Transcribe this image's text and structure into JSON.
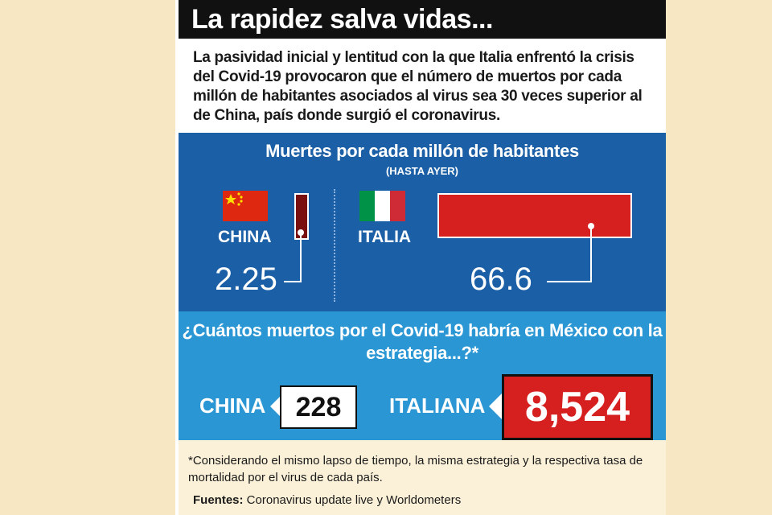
{
  "header": {
    "title": "La rapidez salva vidas..."
  },
  "intro": "La pasividad inicial y lentitud con la que Italia enfrentó la crisis del Covid-19 provocaron que el número de muertos por cada millón de habitantes asociados al virus sea 30 veces superior al de China, país donde surgió el coronavirus.",
  "colors": {
    "title_bg": "#111111",
    "panel_top": "#1b5fa6",
    "panel_bottom": "#2a96d4",
    "china_bar": "#7a0f0f",
    "italy_bar": "#d61f1f",
    "highlight": "#d61f1f"
  },
  "chart_data": {
    "type": "bar",
    "title": "Muertes por cada millón de habitantes",
    "subtitle": "(HASTA AYER)",
    "categories": [
      "CHINA",
      "ITALIA"
    ],
    "values": [
      2.25,
      66.6
    ],
    "value_labels": [
      "2.25",
      "66.6"
    ],
    "icons": [
      "china-flag",
      "italy-flag"
    ]
  },
  "estimate": {
    "question": "¿Cuántos muertos por el Covid-19 habría en México con la estrategia...?*",
    "china_label": "CHINA",
    "china_value": "228",
    "italy_label": "ITALIANA",
    "italy_value": "8,524"
  },
  "footnote": "*Considerando el mismo lapso de tiempo, la misma estrategia y la respectiva tasa de mortalidad por el virus de cada país.",
  "sources": {
    "label": "Fuentes:",
    "text": " Coronavirus update live y Worldometers"
  }
}
